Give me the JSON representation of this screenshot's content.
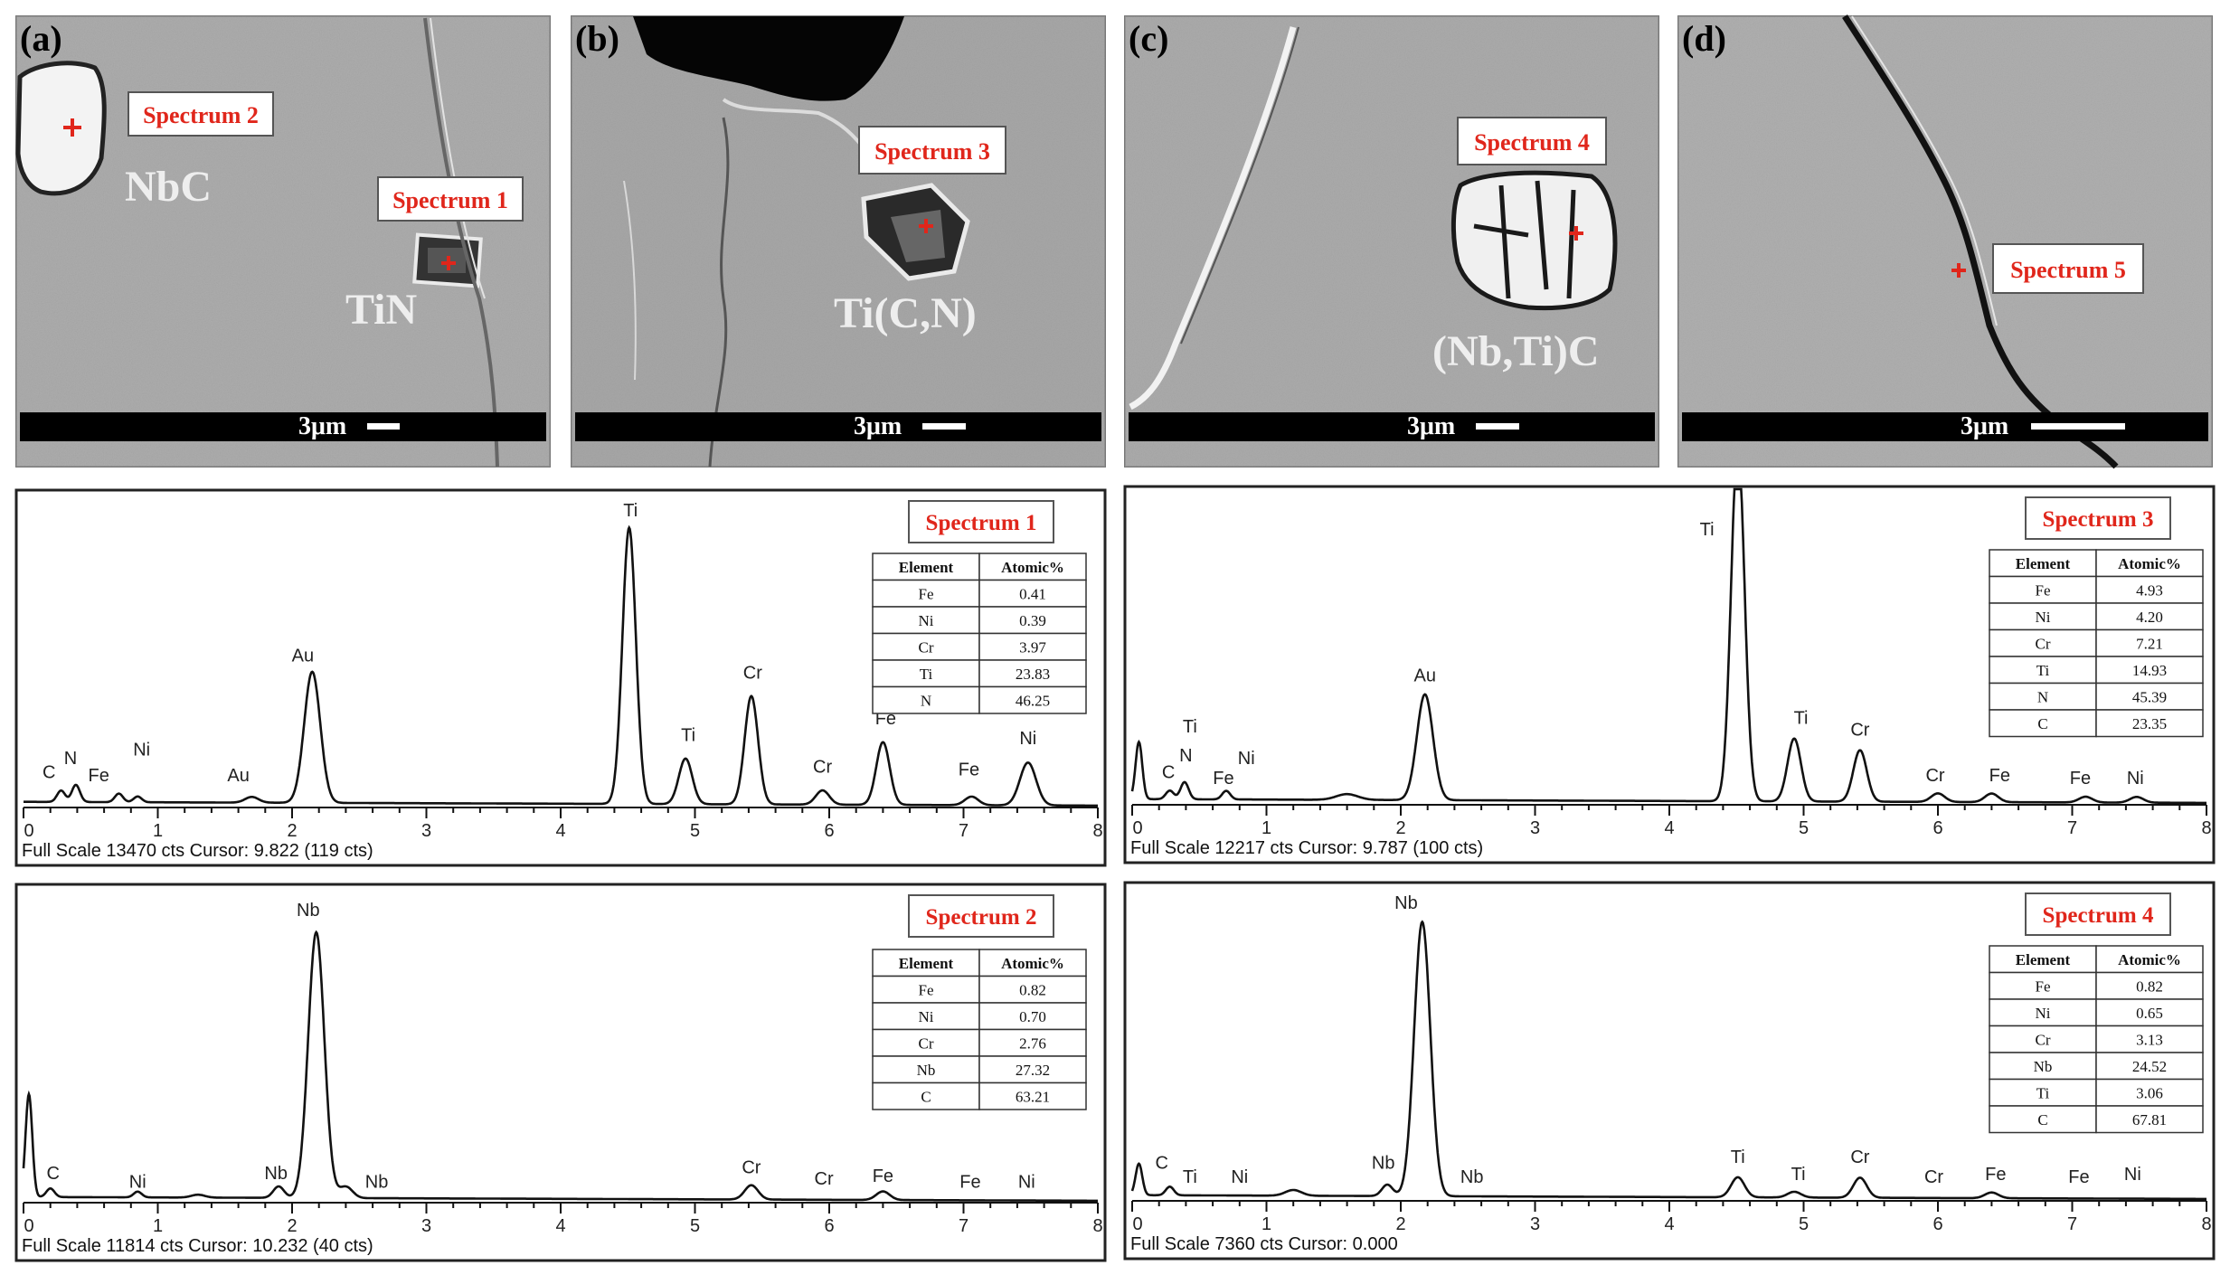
{
  "sem_panels": [
    {
      "panel_label": "(a)",
      "scale_text": "3μm",
      "spectrum_tags": [
        "Spectrum 2",
        "Spectrum 1"
      ],
      "phase_labels": [
        "NbC",
        "TiN"
      ]
    },
    {
      "panel_label": "(b)",
      "scale_text": "3μm",
      "spectrum_tags": [
        "Spectrum 3"
      ],
      "phase_labels": [
        "Ti(C,N)"
      ]
    },
    {
      "panel_label": "(c)",
      "scale_text": "3μm",
      "spectrum_tags": [
        "Spectrum 4"
      ],
      "phase_labels": [
        "(Nb,Ti)C"
      ]
    },
    {
      "panel_label": "(d)",
      "scale_text": "3μm",
      "spectrum_tags": [
        "Spectrum 5"
      ],
      "phase_labels": []
    }
  ],
  "chart_data": [
    {
      "type": "line",
      "title": "Spectrum 1",
      "footer": "Full Scale 13470 cts Cursor: 9.822  (119 cts)",
      "x_ticks": [
        "0",
        "1",
        "2",
        "3",
        "4",
        "5",
        "6",
        "7",
        "8"
      ],
      "xlim": [
        0,
        8
      ],
      "ylim": [
        0,
        1
      ],
      "baseline": 0.02,
      "peaks": [
        {
          "x": 0.28,
          "h": 0.04,
          "w": 0.03
        },
        {
          "x": 0.39,
          "h": 0.06,
          "w": 0.03
        },
        {
          "x": 0.71,
          "h": 0.03,
          "w": 0.03
        },
        {
          "x": 0.85,
          "h": 0.02,
          "w": 0.03
        },
        {
          "x": 1.7,
          "h": 0.02,
          "w": 0.05
        },
        {
          "x": 2.15,
          "h": 0.46,
          "w": 0.06
        },
        {
          "x": 4.51,
          "h": 0.97,
          "w": 0.05
        },
        {
          "x": 4.93,
          "h": 0.16,
          "w": 0.05
        },
        {
          "x": 5.42,
          "h": 0.38,
          "w": 0.05
        },
        {
          "x": 5.95,
          "h": 0.05,
          "w": 0.05
        },
        {
          "x": 6.4,
          "h": 0.22,
          "w": 0.05
        },
        {
          "x": 7.06,
          "h": 0.03,
          "w": 0.05
        },
        {
          "x": 7.48,
          "h": 0.15,
          "w": 0.06
        }
      ],
      "peak_labels": [
        {
          "label": "C",
          "x": 0.19,
          "y": 0.09
        },
        {
          "label": "N",
          "x": 0.35,
          "y": 0.14
        },
        {
          "label": "Fe",
          "x": 0.56,
          "y": 0.08
        },
        {
          "label": "Ni",
          "x": 0.88,
          "y": 0.17
        },
        {
          "label": "Au",
          "x": 1.6,
          "y": 0.08
        },
        {
          "label": "Au",
          "x": 2.08,
          "y": 0.5
        },
        {
          "label": "Ti",
          "x": 4.52,
          "y": 1.01
        },
        {
          "label": "Ti",
          "x": 4.95,
          "y": 0.22
        },
        {
          "label": "Cr",
          "x": 5.43,
          "y": 0.44
        },
        {
          "label": "Cr",
          "x": 5.95,
          "y": 0.11
        },
        {
          "label": "Fe",
          "x": 6.42,
          "y": 0.28
        },
        {
          "label": "Fe",
          "x": 7.04,
          "y": 0.1
        },
        {
          "label": "Ni",
          "x": 7.48,
          "y": 0.21
        }
      ],
      "table": {
        "headers": [
          "Element",
          "Atomic%"
        ],
        "rows": [
          [
            "Fe",
            "0.41"
          ],
          [
            "Ni",
            "0.39"
          ],
          [
            "Cr",
            "3.97"
          ],
          [
            "Ti",
            "23.83"
          ],
          [
            "N",
            "46.25"
          ]
        ]
      }
    },
    {
      "type": "line",
      "title": "Spectrum 3",
      "footer": "Full Scale 12217 cts Cursor: 9.787  (100 cts)",
      "x_ticks": [
        "0",
        "1",
        "2",
        "3",
        "4",
        "5",
        "6",
        "7",
        "8"
      ],
      "xlim": [
        0,
        8
      ],
      "ylim": [
        0,
        1
      ],
      "baseline": 0.02,
      "peaks": [
        {
          "x": 0.05,
          "h": 0.2,
          "w": 0.025
        },
        {
          "x": 0.28,
          "h": 0.03,
          "w": 0.03
        },
        {
          "x": 0.39,
          "h": 0.06,
          "w": 0.03
        },
        {
          "x": 0.7,
          "h": 0.03,
          "w": 0.03
        },
        {
          "x": 1.6,
          "h": 0.02,
          "w": 0.08
        },
        {
          "x": 2.18,
          "h": 0.37,
          "w": 0.06
        },
        {
          "x": 4.51,
          "h": 1.25,
          "w": 0.05
        },
        {
          "x": 4.93,
          "h": 0.22,
          "w": 0.05
        },
        {
          "x": 5.42,
          "h": 0.18,
          "w": 0.05
        },
        {
          "x": 6.0,
          "h": 0.03,
          "w": 0.05
        },
        {
          "x": 6.4,
          "h": 0.03,
          "w": 0.05
        },
        {
          "x": 7.1,
          "h": 0.02,
          "w": 0.05
        },
        {
          "x": 7.48,
          "h": 0.02,
          "w": 0.05
        }
      ],
      "peak_labels": [
        {
          "label": "C",
          "x": 0.27,
          "y": 0.08
        },
        {
          "label": "N",
          "x": 0.4,
          "y": 0.14
        },
        {
          "label": "Ti",
          "x": 0.43,
          "y": 0.24
        },
        {
          "label": "Fe",
          "x": 0.68,
          "y": 0.06
        },
        {
          "label": "Ni",
          "x": 0.85,
          "y": 0.13
        },
        {
          "label": "Au",
          "x": 2.18,
          "y": 0.42
        },
        {
          "label": "Ti",
          "x": 4.28,
          "y": 0.93
        },
        {
          "label": "Ti",
          "x": 4.98,
          "y": 0.27
        },
        {
          "label": "Cr",
          "x": 5.42,
          "y": 0.23
        },
        {
          "label": "Cr",
          "x": 5.98,
          "y": 0.07
        },
        {
          "label": "Fe",
          "x": 6.46,
          "y": 0.07
        },
        {
          "label": "Fe",
          "x": 7.06,
          "y": 0.06
        },
        {
          "label": "Ni",
          "x": 7.47,
          "y": 0.06
        }
      ],
      "table": {
        "headers": [
          "Element",
          "Atomic%"
        ],
        "rows": [
          [
            "Fe",
            "4.93"
          ],
          [
            "Ni",
            "4.20"
          ],
          [
            "Cr",
            "7.21"
          ],
          [
            "Ti",
            "14.93"
          ],
          [
            "N",
            "45.39"
          ],
          [
            "C",
            "23.35"
          ]
        ]
      }
    },
    {
      "type": "line",
      "title": "Spectrum 2",
      "footer": "Full Scale 11814 cts Cursor: 10.232  (40 cts)",
      "x_ticks": [
        "0",
        "1",
        "2",
        "3",
        "4",
        "5",
        "6",
        "7",
        "8"
      ],
      "xlim": [
        0,
        8
      ],
      "ylim": [
        0,
        1
      ],
      "baseline": 0.02,
      "peaks": [
        {
          "x": 0.04,
          "h": 0.36,
          "w": 0.025
        },
        {
          "x": 0.2,
          "h": 0.03,
          "w": 0.03
        },
        {
          "x": 0.85,
          "h": 0.02,
          "w": 0.03
        },
        {
          "x": 1.3,
          "h": 0.01,
          "w": 0.05
        },
        {
          "x": 1.9,
          "h": 0.04,
          "w": 0.04
        },
        {
          "x": 2.18,
          "h": 0.93,
          "w": 0.06
        },
        {
          "x": 2.4,
          "h": 0.04,
          "w": 0.05
        },
        {
          "x": 5.42,
          "h": 0.05,
          "w": 0.05
        },
        {
          "x": 6.4,
          "h": 0.03,
          "w": 0.05
        }
      ],
      "peak_labels": [
        {
          "label": "C",
          "x": 0.22,
          "y": 0.07
        },
        {
          "label": "Ni",
          "x": 0.85,
          "y": 0.04
        },
        {
          "label": "Nb",
          "x": 1.88,
          "y": 0.07
        },
        {
          "label": "Nb",
          "x": 2.12,
          "y": 0.99
        },
        {
          "label": "Nb",
          "x": 2.63,
          "y": 0.04
        },
        {
          "label": "Cr",
          "x": 5.42,
          "y": 0.09
        },
        {
          "label": "Cr",
          "x": 5.96,
          "y": 0.05
        },
        {
          "label": "Fe",
          "x": 6.4,
          "y": 0.06
        },
        {
          "label": "Fe",
          "x": 7.05,
          "y": 0.04
        },
        {
          "label": "Ni",
          "x": 7.47,
          "y": 0.04
        }
      ],
      "table": {
        "headers": [
          "Element",
          "Atomic%"
        ],
        "rows": [
          [
            "Fe",
            "0.82"
          ],
          [
            "Ni",
            "0.70"
          ],
          [
            "Cr",
            "2.76"
          ],
          [
            "Nb",
            "27.32"
          ],
          [
            "C",
            "63.21"
          ]
        ]
      }
    },
    {
      "type": "line",
      "title": "Spectrum 4",
      "footer": "Full Scale 7360 cts Cursor: 0.000",
      "x_ticks": [
        "0",
        "1",
        "2",
        "3",
        "4",
        "5",
        "6",
        "7",
        "8"
      ],
      "xlim": [
        0,
        8
      ],
      "ylim": [
        0,
        1
      ],
      "baseline": 0.02,
      "peaks": [
        {
          "x": 0.05,
          "h": 0.11,
          "w": 0.025
        },
        {
          "x": 0.28,
          "h": 0.03,
          "w": 0.03
        },
        {
          "x": 1.2,
          "h": 0.02,
          "w": 0.06
        },
        {
          "x": 1.9,
          "h": 0.04,
          "w": 0.04
        },
        {
          "x": 2.16,
          "h": 0.96,
          "w": 0.06
        },
        {
          "x": 4.51,
          "h": 0.07,
          "w": 0.05
        },
        {
          "x": 4.93,
          "h": 0.02,
          "w": 0.05
        },
        {
          "x": 5.42,
          "h": 0.07,
          "w": 0.05
        },
        {
          "x": 6.4,
          "h": 0.02,
          "w": 0.05
        }
      ],
      "peak_labels": [
        {
          "label": "C",
          "x": 0.22,
          "y": 0.1
        },
        {
          "label": "Ti",
          "x": 0.43,
          "y": 0.05
        },
        {
          "label": "Ni",
          "x": 0.8,
          "y": 0.05
        },
        {
          "label": "Nb",
          "x": 1.87,
          "y": 0.1
        },
        {
          "label": "Nb",
          "x": 2.04,
          "y": 1.01
        },
        {
          "label": "Nb",
          "x": 2.53,
          "y": 0.05
        },
        {
          "label": "Ti",
          "x": 4.51,
          "y": 0.12
        },
        {
          "label": "Ti",
          "x": 4.96,
          "y": 0.06
        },
        {
          "label": "Cr",
          "x": 5.42,
          "y": 0.12
        },
        {
          "label": "Cr",
          "x": 5.97,
          "y": 0.05
        },
        {
          "label": "Fe",
          "x": 6.43,
          "y": 0.06
        },
        {
          "label": "Fe",
          "x": 7.05,
          "y": 0.05
        },
        {
          "label": "Ni",
          "x": 7.45,
          "y": 0.06
        }
      ],
      "table": {
        "headers": [
          "Element",
          "Atomic%"
        ],
        "rows": [
          [
            "Fe",
            "0.82"
          ],
          [
            "Ni",
            "0.65"
          ],
          [
            "Cr",
            "3.13"
          ],
          [
            "Nb",
            "24.52"
          ],
          [
            "Ti",
            "3.06"
          ],
          [
            "C",
            "67.81"
          ]
        ]
      }
    }
  ]
}
